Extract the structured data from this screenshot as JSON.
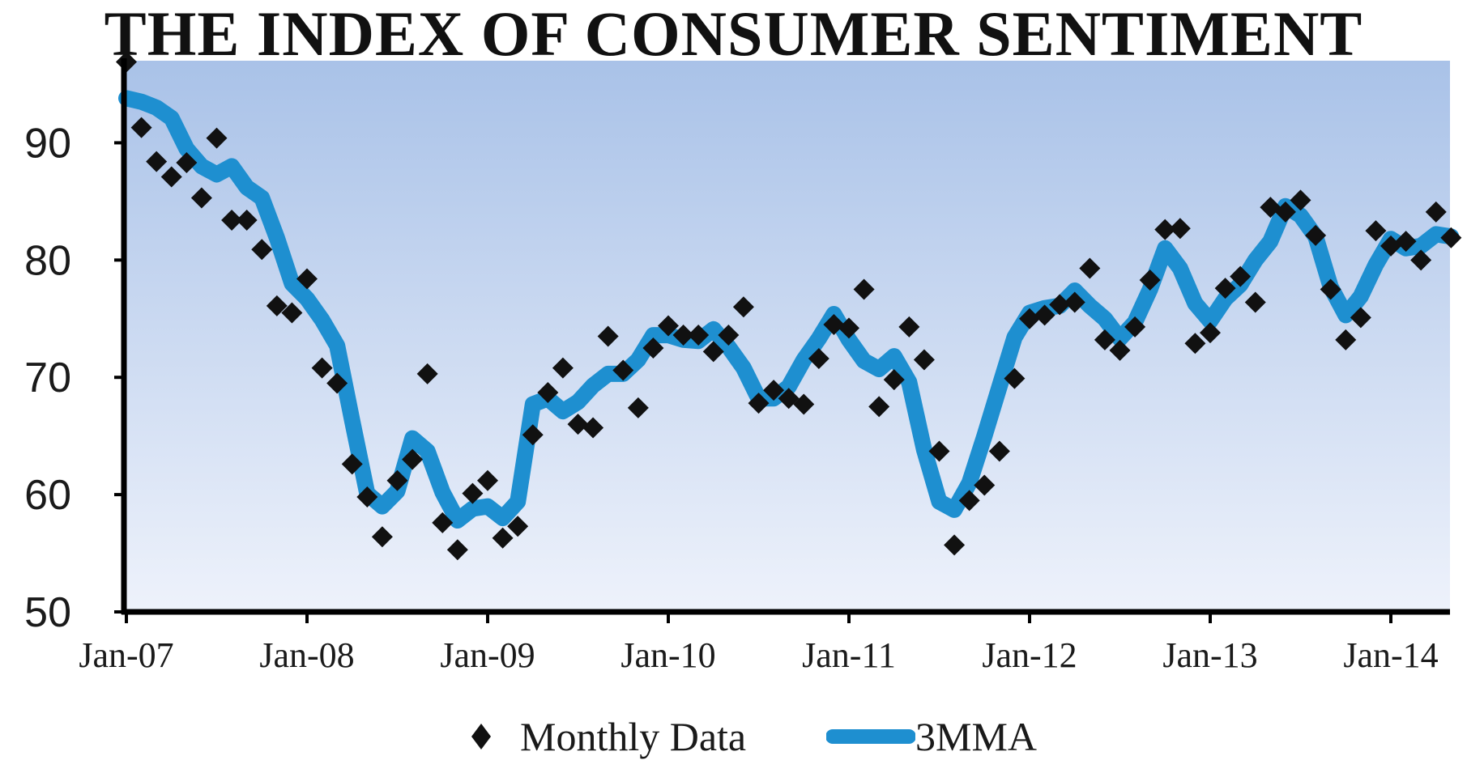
{
  "chart_data": {
    "type": "line",
    "title": "THE INDEX OF CONSUMER SENTIMENT",
    "xlabel": "",
    "ylabel": "",
    "ylim": [
      50,
      97
    ],
    "yticks": [
      50,
      60,
      70,
      80,
      90
    ],
    "xtick_labels": [
      "Jan-07",
      "Jan-08",
      "Jan-09",
      "Jan-10",
      "Jan-11",
      "Jan-12",
      "Jan-13",
      "Jan-14"
    ],
    "x_start": "Jan-07",
    "x_end": "Apr-14",
    "grid": false,
    "legend": "bottom",
    "background": {
      "top": "#a9c2e8",
      "bottom": "#eef2fb"
    },
    "series": [
      {
        "name": "Monthly Data",
        "style": "markers",
        "marker": "diamond",
        "color": "#111111",
        "values": [
          96.9,
          91.3,
          88.4,
          87.1,
          88.3,
          85.3,
          90.4,
          83.4,
          83.4,
          80.9,
          76.1,
          75.5,
          78.4,
          70.8,
          69.5,
          62.6,
          59.8,
          56.4,
          61.2,
          63.0,
          70.3,
          57.6,
          55.3,
          60.1,
          61.2,
          56.3,
          57.3,
          65.1,
          68.7,
          70.8,
          66.0,
          65.7,
          73.5,
          70.6,
          67.4,
          72.5,
          74.4,
          73.6,
          73.6,
          72.2,
          73.6,
          76.0,
          67.8,
          68.9,
          68.2,
          67.7,
          71.6,
          74.5,
          74.2,
          77.5,
          67.5,
          69.8,
          74.3,
          71.5,
          63.7,
          55.7,
          59.5,
          60.8,
          63.7,
          69.9,
          75.0,
          75.3,
          76.2,
          76.4,
          79.3,
          73.2,
          72.3,
          74.3,
          78.3,
          82.6,
          82.7,
          72.9,
          73.8,
          77.6,
          78.6,
          76.4,
          84.5,
          84.1,
          85.1,
          82.1,
          77.5,
          73.2,
          75.1,
          82.5,
          81.2,
          81.6,
          80.0,
          84.1,
          81.9
        ]
      },
      {
        "name": "3MMA",
        "style": "line",
        "color": "#1e8fd0",
        "values": [
          93.8,
          93.5,
          93.0,
          92.1,
          89.5,
          88.0,
          87.3,
          88.0,
          86.2,
          85.3,
          81.9,
          78.0,
          76.7,
          74.9,
          72.7,
          66.3,
          60.1,
          59.0,
          60.3,
          64.8,
          63.7,
          60.2,
          57.8,
          58.8,
          59.0,
          58.0,
          59.4,
          67.7,
          68.2,
          67.1,
          67.9,
          69.3,
          70.3,
          70.3,
          71.5,
          73.6,
          73.6,
          73.2,
          73.1,
          74.1,
          72.6,
          70.8,
          68.2,
          68.2,
          69.2,
          71.5,
          73.3,
          75.4,
          73.2,
          71.4,
          70.7,
          71.8,
          69.6,
          63.8,
          59.4,
          58.7,
          61.0,
          65.0,
          69.2,
          73.4,
          75.5,
          75.9,
          76.1,
          77.4,
          76.1,
          75.0,
          73.3,
          74.7,
          77.5,
          81.0,
          79.3,
          76.3,
          74.8,
          76.7,
          77.9,
          80.0,
          81.6,
          84.6,
          83.8,
          82.0,
          77.7,
          75.3,
          76.9,
          79.6,
          81.8,
          81.0,
          81.2,
          82.2,
          82.0
        ]
      }
    ]
  }
}
